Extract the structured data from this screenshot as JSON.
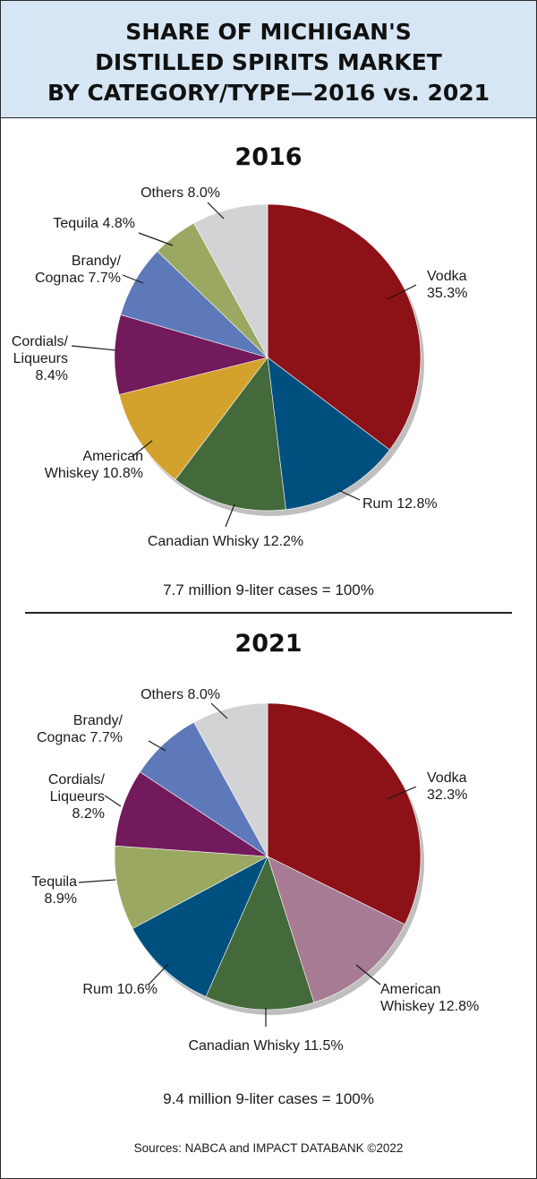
{
  "title_lines": [
    "SHARE OF MICHIGAN'S",
    "DISTILLED SPIRITS MARKET",
    "BY CATEGORY/TYPE—2016 vs. 2021"
  ],
  "source": "Sources: NABCA and IMPACT DATABANK ©2022",
  "chart_data": [
    {
      "type": "pie",
      "title": "2016",
      "footnote": "7.7 million 9-liter cases = 100%",
      "slices": [
        {
          "name": "Vodka",
          "value": 35.3,
          "label": [
            "Vodka",
            "35.3%"
          ],
          "color": "#8c1218"
        },
        {
          "name": "Rum",
          "value": 12.8,
          "label": [
            "Rum 12.8%"
          ],
          "color": "#00507f"
        },
        {
          "name": "Canadian Whisky",
          "value": 12.2,
          "label": [
            "Canadian Whisky 12.2%"
          ],
          "color": "#44693a"
        },
        {
          "name": "American Whiskey",
          "value": 10.8,
          "label": [
            "American",
            "Whiskey 10.8%"
          ],
          "color": "#d2a22c"
        },
        {
          "name": "Cordials/Liqueurs",
          "value": 8.4,
          "label": [
            "Cordials/",
            "Liqueurs",
            "8.4%"
          ],
          "color": "#721a5b"
        },
        {
          "name": "Brandy/Cognac",
          "value": 7.7,
          "label": [
            "Brandy/",
            "Cognac 7.7%"
          ],
          "color": "#5e79b9"
        },
        {
          "name": "Tequila",
          "value": 4.8,
          "label": [
            "Tequila 4.8%"
          ],
          "color": "#9aa862"
        },
        {
          "name": "Others",
          "value": 8.0,
          "label": [
            "Others 8.0%"
          ],
          "color": "#d3d3d6"
        }
      ]
    },
    {
      "type": "pie",
      "title": "2021",
      "footnote": "9.4 million 9-liter cases = 100%",
      "slices": [
        {
          "name": "Vodka",
          "value": 32.3,
          "label": [
            "Vodka",
            "32.3%"
          ],
          "color": "#8c1218"
        },
        {
          "name": "American Whiskey",
          "value": 12.8,
          "label": [
            "American",
            "Whiskey 12.8%"
          ],
          "color": "#a77b93"
        },
        {
          "name": "Canadian Whisky",
          "value": 11.5,
          "label": [
            "Canadian Whisky 11.5%"
          ],
          "color": "#44693a"
        },
        {
          "name": "Rum",
          "value": 10.6,
          "label": [
            "Rum 10.6%"
          ],
          "color": "#00507f"
        },
        {
          "name": "Tequila",
          "value": 8.9,
          "label": [
            "Tequila",
            "8.9%"
          ],
          "color": "#9aa862"
        },
        {
          "name": "Cordials/Liqueurs",
          "value": 8.2,
          "label": [
            "Cordials/",
            "Liqueurs",
            "8.2%"
          ],
          "color": "#721a5b"
        },
        {
          "name": "Brandy/Cognac",
          "value": 7.7,
          "label": [
            "Brandy/",
            "Cognac 7.7%"
          ],
          "color": "#5e79b9"
        },
        {
          "name": "Others",
          "value": 8.0,
          "label": [
            "Others 8.0%"
          ],
          "color": "#d3d3d6"
        }
      ]
    }
  ]
}
